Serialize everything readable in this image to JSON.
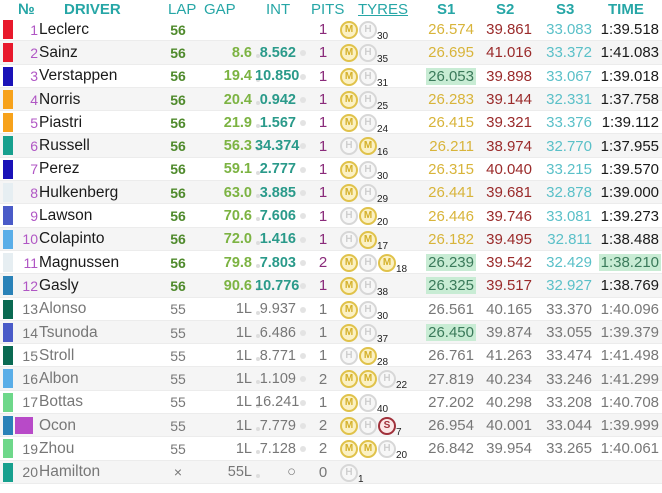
{
  "header": {
    "no": "№",
    "driver": "DRIVER",
    "lap": "LAP",
    "gap": "GAP",
    "int": "INT",
    "pits": "PITS",
    "tyres": "TYRES",
    "s1": "S1",
    "s2": "S2",
    "s3": "S3",
    "time": "TIME"
  },
  "colors": {
    "header": "#26a6a6",
    "position": "#b056c4",
    "lap": "#4f8a2c",
    "gap": "#7cb342",
    "int": "#2a9a8a",
    "pits": "#8a2a7a",
    "s1": "#d8b43a",
    "s2": "#9a2a2a",
    "s3": "#5ac0c8",
    "best_highlight": "#c8ecd4"
  },
  "rows": [
    {
      "pos": "1",
      "driver": "Leclerc",
      "team_color": "#e8192c",
      "lap": "56",
      "gap": "",
      "int": "",
      "pits": "1",
      "tyres": [
        "M",
        "H"
      ],
      "tyre_laps": "30",
      "s1": "26.574",
      "s2": "39.861",
      "s3": "33.083",
      "time": "1:39.518",
      "lapped": false,
      "best": []
    },
    {
      "pos": "2",
      "driver": "Sainz",
      "team_color": "#e8192c",
      "lap": "56",
      "gap": "8.6",
      "int": "8.562",
      "pits": "1",
      "tyres": [
        "M",
        "H"
      ],
      "tyre_laps": "35",
      "s1": "26.695",
      "s2": "41.016",
      "s3": "33.372",
      "time": "1:41.083",
      "lapped": false,
      "best": []
    },
    {
      "pos": "3",
      "driver": "Verstappen",
      "team_color": "#1a12b8",
      "lap": "56",
      "gap": "19.4",
      "int": "10.850",
      "pits": "1",
      "tyres": [
        "M",
        "H"
      ],
      "tyre_laps": "31",
      "s1": "26.053",
      "s2": "39.898",
      "s3": "33.067",
      "time": "1:39.018",
      "lapped": false,
      "best": [
        "s1"
      ]
    },
    {
      "pos": "4",
      "driver": "Norris",
      "team_color": "#f7a21b",
      "lap": "56",
      "gap": "20.4",
      "int": "0.942",
      "pits": "1",
      "tyres": [
        "M",
        "H"
      ],
      "tyre_laps": "25",
      "s1": "26.283",
      "s2": "39.144",
      "s3": "32.331",
      "time": "1:37.758",
      "lapped": false,
      "best": []
    },
    {
      "pos": "5",
      "driver": "Piastri",
      "team_color": "#f7a21b",
      "lap": "56",
      "gap": "21.9",
      "int": "1.567",
      "pits": "1",
      "tyres": [
        "M",
        "H"
      ],
      "tyre_laps": "24",
      "s1": "26.415",
      "s2": "39.321",
      "s3": "33.376",
      "time": "1:39.112",
      "lapped": false,
      "best": []
    },
    {
      "pos": "6",
      "driver": "Russell",
      "team_color": "#17a08e",
      "lap": "56",
      "gap": "56.3",
      "int": "34.374",
      "pits": "1",
      "tyres": [
        "H",
        "M"
      ],
      "tyre_laps": "16",
      "s1": "26.211",
      "s2": "38.974",
      "s3": "32.770",
      "time": "1:37.955",
      "lapped": false,
      "best": []
    },
    {
      "pos": "7",
      "driver": "Perez",
      "team_color": "#1a12b8",
      "lap": "56",
      "gap": "59.1",
      "int": "2.777",
      "pits": "1",
      "tyres": [
        "M",
        "H"
      ],
      "tyre_laps": "30",
      "s1": "26.315",
      "s2": "40.040",
      "s3": "33.215",
      "time": "1:39.570",
      "lapped": false,
      "best": []
    },
    {
      "pos": "8",
      "driver": "Hulkenberg",
      "team_color": "#e6eef2",
      "lap": "56",
      "gap": "63.0",
      "int": "3.885",
      "pits": "1",
      "tyres": [
        "M",
        "H"
      ],
      "tyre_laps": "29",
      "s1": "26.441",
      "s2": "39.681",
      "s3": "32.878",
      "time": "1:39.000",
      "lapped": false,
      "best": []
    },
    {
      "pos": "9",
      "driver": "Lawson",
      "team_color": "#4a5bc8",
      "lap": "56",
      "gap": "70.6",
      "int": "7.606",
      "pits": "1",
      "tyres": [
        "H",
        "M"
      ],
      "tyre_laps": "20",
      "s1": "26.446",
      "s2": "39.746",
      "s3": "33.081",
      "time": "1:39.273",
      "lapped": false,
      "best": []
    },
    {
      "pos": "10",
      "driver": "Colapinto",
      "team_color": "#5aaee8",
      "lap": "56",
      "gap": "72.0",
      "int": "1.416",
      "pits": "1",
      "tyres": [
        "H",
        "M"
      ],
      "tyre_laps": "17",
      "s1": "26.182",
      "s2": "39.495",
      "s3": "32.811",
      "time": "1:38.488",
      "lapped": false,
      "best": []
    },
    {
      "pos": "11",
      "driver": "Magnussen",
      "team_color": "#e6eef2",
      "lap": "56",
      "gap": "79.8",
      "int": "7.803",
      "pits": "2",
      "tyres": [
        "M",
        "H",
        "M"
      ],
      "tyre_laps": "18",
      "s1": "26.239",
      "s2": "39.542",
      "s3": "32.429",
      "time": "1:38.210",
      "lapped": false,
      "best": [
        "s1",
        "time"
      ]
    },
    {
      "pos": "12",
      "driver": "Gasly",
      "team_color": "#2a82b8",
      "lap": "56",
      "gap": "90.6",
      "int": "10.776",
      "pits": "1",
      "tyres": [
        "M",
        "H"
      ],
      "tyre_laps": "38",
      "s1": "26.325",
      "s2": "39.517",
      "s3": "32.927",
      "time": "1:38.769",
      "lapped": false,
      "best": [
        "s1"
      ]
    },
    {
      "pos": "13",
      "driver": "Alonso",
      "team_color": "#0a6a52",
      "lap": "55",
      "gap": "1L",
      "int": "9.937",
      "pits": "1",
      "tyres": [
        "M",
        "H"
      ],
      "tyre_laps": "30",
      "s1": "26.561",
      "s2": "40.165",
      "s3": "33.370",
      "time": "1:40.096",
      "lapped": true,
      "best": []
    },
    {
      "pos": "14",
      "driver": "Tsunoda",
      "team_color": "#4a5bc8",
      "lap": "55",
      "gap": "1L",
      "int": "6.486",
      "pits": "1",
      "tyres": [
        "M",
        "H"
      ],
      "tyre_laps": "37",
      "s1": "26.450",
      "s2": "39.874",
      "s3": "33.055",
      "time": "1:39.379",
      "lapped": true,
      "best": [
        "s1"
      ]
    },
    {
      "pos": "15",
      "driver": "Stroll",
      "team_color": "#0a6a52",
      "lap": "55",
      "gap": "1L",
      "int": "8.771",
      "pits": "1",
      "tyres": [
        "H",
        "M"
      ],
      "tyre_laps": "28",
      "s1": "26.761",
      "s2": "41.263",
      "s3": "33.474",
      "time": "1:41.498",
      "lapped": true,
      "best": []
    },
    {
      "pos": "16",
      "driver": "Albon",
      "team_color": "#5aaee8",
      "lap": "55",
      "gap": "1L",
      "int": "1.109",
      "pits": "2",
      "tyres": [
        "M",
        "M",
        "H"
      ],
      "tyre_laps": "22",
      "s1": "27.819",
      "s2": "40.234",
      "s3": "33.246",
      "time": "1:41.299",
      "lapped": true,
      "best": []
    },
    {
      "pos": "17",
      "driver": "Bottas",
      "team_color": "#6ed88a",
      "lap": "55",
      "gap": "1L",
      "int": "16.241",
      "pits": "1",
      "tyres": [
        "M",
        "H"
      ],
      "tyre_laps": "40",
      "s1": "27.202",
      "s2": "40.298",
      "s3": "33.208",
      "time": "1:40.708",
      "lapped": true,
      "best": []
    },
    {
      "pos": "18",
      "driver": "Ocon",
      "team_color": "#2a82b8",
      "lap": "55",
      "gap": "1L",
      "int": "7.779",
      "pits": "2",
      "tyres": [
        "M",
        "H",
        "S"
      ],
      "tyre_laps": "7",
      "s1": "26.954",
      "s2": "40.001",
      "s3": "33.044",
      "time": "1:39.999",
      "lapped": true,
      "best": [],
      "pos_highlight": "#b84ac8"
    },
    {
      "pos": "19",
      "driver": "Zhou",
      "team_color": "#6ed88a",
      "lap": "55",
      "gap": "1L",
      "int": "7.128",
      "pits": "2",
      "tyres": [
        "M",
        "M",
        "H"
      ],
      "tyre_laps": "20",
      "s1": "26.842",
      "s2": "39.954",
      "s3": "33.265",
      "time": "1:40.061",
      "lapped": true,
      "best": []
    },
    {
      "pos": "20",
      "driver": "Hamilton",
      "team_color": "#17a08e",
      "lap": "×",
      "gap": "55L",
      "int": "○",
      "pits": "0",
      "tyres": [
        "H"
      ],
      "tyre_laps": "1",
      "s1": "",
      "s2": "",
      "s3": "",
      "time": "",
      "lapped": true,
      "best": []
    }
  ]
}
